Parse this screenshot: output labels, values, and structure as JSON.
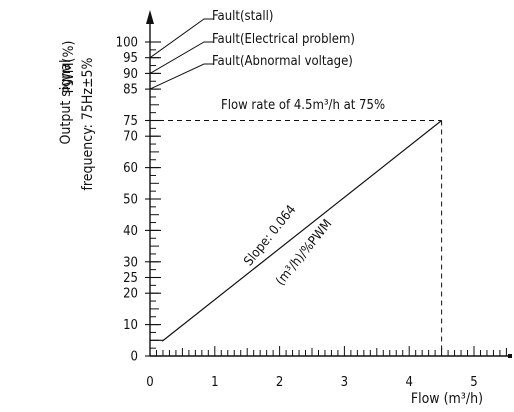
{
  "chart_data": {
    "type": "line",
    "ylabel_lines": [
      "PWM(%)",
      "Output signal",
      "frequency: 75Hz±5%"
    ],
    "xlabel": "Flow (m³/h)",
    "xlim": [
      0,
      5.5
    ],
    "ylim": [
      0,
      100
    ],
    "x_ticks": [
      "0",
      "1",
      "2",
      "3",
      "4",
      "5"
    ],
    "x_tick_values": [
      0,
      1,
      2,
      3,
      4,
      5
    ],
    "y_ticks": [
      "0",
      "10",
      "20",
      "25",
      "30",
      "40",
      "50",
      "60",
      "70",
      "75",
      "85",
      "90",
      "95",
      "100"
    ],
    "y_tick_values": [
      0,
      10,
      20,
      25,
      30,
      40,
      50,
      60,
      70,
      75,
      85,
      90,
      95,
      100
    ],
    "series": [
      {
        "x": [
          0,
          0.2,
          0.2,
          4.5
        ],
        "y": [
          5,
          5,
          4.9,
          75
        ]
      }
    ],
    "reference": {
      "x": 4.5,
      "y": 75,
      "label": "Flow rate of 4.5m³/h at 75%"
    },
    "slope_label_1": "Slope: 0.064",
    "slope_label_2": "(m³/h)/%PWM",
    "faults": [
      {
        "label": "Fault(stall)",
        "y": 95
      },
      {
        "label": "Fault(Electrical problem)",
        "y": 90
      },
      {
        "label": "Fault(Abnormal voltage)",
        "y": 85
      }
    ],
    "colors": {
      "ink": "#111111",
      "background": "#ffffff"
    }
  }
}
